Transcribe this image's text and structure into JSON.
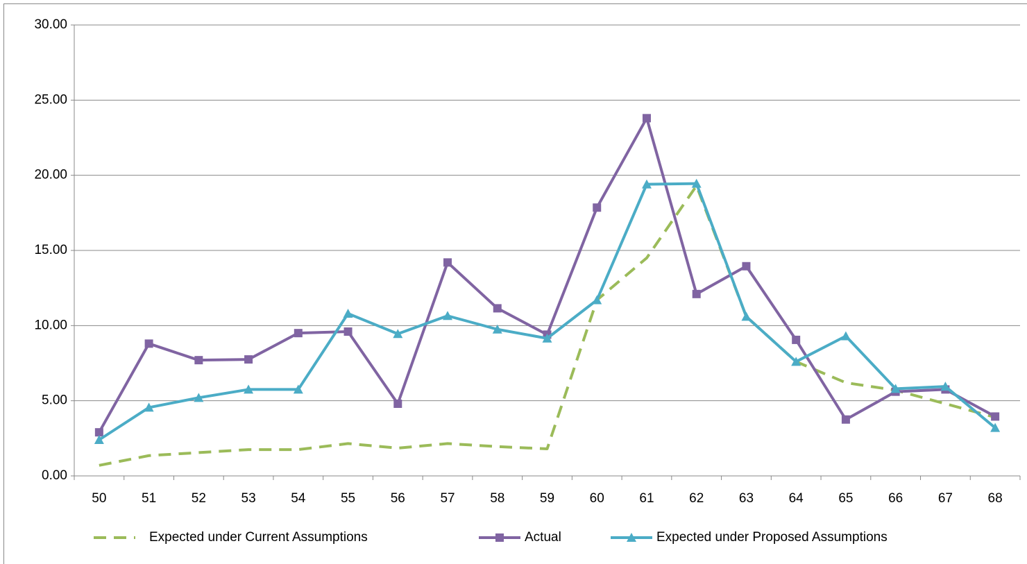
{
  "chart_data": {
    "type": "line",
    "categories": [
      "50",
      "51",
      "52",
      "53",
      "54",
      "55",
      "56",
      "57",
      "58",
      "59",
      "60",
      "61",
      "62",
      "63",
      "64",
      "65",
      "66",
      "67",
      "68"
    ],
    "series": [
      {
        "name": "Expected under Current Assumptions",
        "color": "#9bbb59",
        "line_style": "dashed",
        "marker": "none",
        "values": [
          0.7,
          1.35,
          1.55,
          1.75,
          1.75,
          2.15,
          1.85,
          2.15,
          1.95,
          1.8,
          11.7,
          14.5,
          19.3,
          10.6,
          7.6,
          6.2,
          5.7,
          4.8,
          3.9
        ]
      },
      {
        "name": "Actual",
        "color": "#8064a2",
        "line_style": "solid",
        "marker": "square",
        "values": [
          2.9,
          8.8,
          7.7,
          7.75,
          9.5,
          9.6,
          4.8,
          14.2,
          11.15,
          9.4,
          17.85,
          23.8,
          12.1,
          13.95,
          9.05,
          3.75,
          5.6,
          5.75,
          3.95
        ]
      },
      {
        "name": "Expected under Proposed Assumptions",
        "color": "#4bacc6",
        "line_style": "solid",
        "marker": "triangle",
        "values": [
          2.4,
          4.55,
          5.2,
          5.75,
          5.75,
          10.8,
          9.45,
          10.65,
          9.75,
          9.15,
          11.7,
          19.4,
          19.45,
          10.6,
          7.6,
          9.3,
          5.8,
          5.95,
          3.2
        ]
      }
    ],
    "ylim": [
      0,
      30
    ],
    "yticks": [
      {
        "value": 0,
        "label": "0.00"
      },
      {
        "value": 5,
        "label": "5.00"
      },
      {
        "value": 10,
        "label": "10.00"
      },
      {
        "value": 15,
        "label": "15.00"
      },
      {
        "value": 20,
        "label": "20.00"
      },
      {
        "value": 25,
        "label": "25.00"
      },
      {
        "value": 30,
        "label": "30.00"
      }
    ],
    "grid": true,
    "legend": "bottom"
  }
}
